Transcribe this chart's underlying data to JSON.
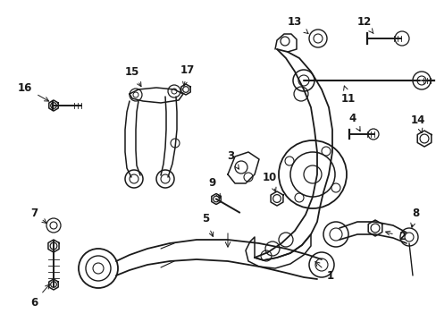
{
  "background_color": "#ffffff",
  "line_color": "#1a1a1a",
  "figsize": [
    4.89,
    3.6
  ],
  "dpi": 100,
  "label_configs": {
    "1": {
      "text": [
        0.425,
        0.685
      ],
      "arrow": [
        0.385,
        0.655
      ]
    },
    "2": {
      "text": [
        0.53,
        0.63
      ],
      "arrow": [
        0.51,
        0.6
      ]
    },
    "3": {
      "text": [
        0.265,
        0.39
      ],
      "arrow": [
        0.278,
        0.415
      ]
    },
    "4": {
      "text": [
        0.66,
        0.185
      ],
      "arrow": [
        0.645,
        0.215
      ]
    },
    "5": {
      "text": [
        0.27,
        0.79
      ],
      "arrow": [
        0.27,
        0.76
      ]
    },
    "6": {
      "text": [
        0.06,
        0.92
      ],
      "arrow": [
        0.065,
        0.885
      ]
    },
    "7": {
      "text": [
        0.058,
        0.72
      ],
      "arrow": [
        0.072,
        0.745
      ]
    },
    "8": {
      "text": [
        0.57,
        0.795
      ],
      "arrow": [
        0.545,
        0.77
      ]
    },
    "9": {
      "text": [
        0.29,
        0.62
      ],
      "arrow": [
        0.29,
        0.64
      ]
    },
    "10": {
      "text": [
        0.46,
        0.595
      ],
      "arrow": [
        0.45,
        0.615
      ]
    },
    "11": {
      "text": [
        0.75,
        0.37
      ],
      "arrow": [
        0.755,
        0.34
      ]
    },
    "12": {
      "text": [
        0.82,
        0.095
      ],
      "arrow": [
        0.845,
        0.12
      ]
    },
    "13": {
      "text": [
        0.7,
        0.095
      ],
      "arrow": [
        0.715,
        0.12
      ]
    },
    "14": {
      "text": [
        0.905,
        0.43
      ],
      "arrow": [
        0.895,
        0.41
      ]
    },
    "15": {
      "text": [
        0.162,
        0.195
      ],
      "arrow": [
        0.175,
        0.22
      ]
    },
    "16": {
      "text": [
        0.038,
        0.265
      ],
      "arrow": [
        0.06,
        0.285
      ]
    },
    "17": {
      "text": [
        0.225,
        0.195
      ],
      "arrow": [
        0.22,
        0.22
      ]
    }
  }
}
